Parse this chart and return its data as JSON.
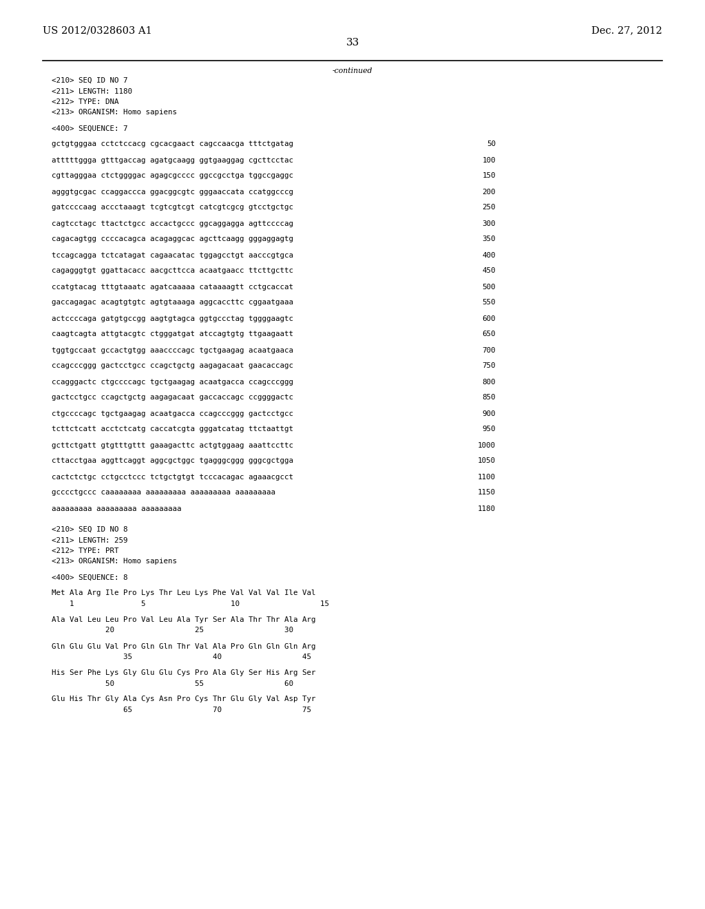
{
  "header_left": "US 2012/0328603 A1",
  "header_right": "Dec. 27, 2012",
  "page_number": "33",
  "continued_label": "-continued",
  "background_color": "#ffffff",
  "text_color": "#000000",
  "font_size_header": 10.5,
  "font_size_page": 11,
  "font_size_body": 7.8,
  "sequence_blocks": [
    {
      "type": "meta",
      "text": "<210> SEQ ID NO 7",
      "num": ""
    },
    {
      "type": "meta",
      "text": "<211> LENGTH: 1180",
      "num": ""
    },
    {
      "type": "meta",
      "text": "<212> TYPE: DNA",
      "num": ""
    },
    {
      "type": "meta",
      "text": "<213> ORGANISM: Homo sapiens",
      "num": ""
    },
    {
      "type": "blank",
      "text": "",
      "num": ""
    },
    {
      "type": "meta",
      "text": "<400> SEQUENCE: 7",
      "num": ""
    },
    {
      "type": "blank",
      "text": "",
      "num": ""
    },
    {
      "type": "seq",
      "text": "gctgtgggaa cctctccacg cgcacgaact cagccaacga tttctgatag",
      "num": "50"
    },
    {
      "type": "blank",
      "text": "",
      "num": ""
    },
    {
      "type": "seq",
      "text": "atttttggga gtttgaccag agatgcaagg ggtgaaggag cgcttcctac",
      "num": "100"
    },
    {
      "type": "blank",
      "text": "",
      "num": ""
    },
    {
      "type": "seq",
      "text": "cgttagggaa ctctggggac agagcgcccc ggccgcctga tggccgaggc",
      "num": "150"
    },
    {
      "type": "blank",
      "text": "",
      "num": ""
    },
    {
      "type": "seq",
      "text": "agggtgcgac ccaggaccca ggacggcgtc gggaaccata ccatggcccg",
      "num": "200"
    },
    {
      "type": "blank",
      "text": "",
      "num": ""
    },
    {
      "type": "seq",
      "text": "gatccccaag accctaaagt tcgtcgtcgt catcgtcgcg gtcctgctgc",
      "num": "250"
    },
    {
      "type": "blank",
      "text": "",
      "num": ""
    },
    {
      "type": "seq",
      "text": "cagtcctagc ttactctgcc accactgccc ggcaggagga agttccccag",
      "num": "300"
    },
    {
      "type": "blank",
      "text": "",
      "num": ""
    },
    {
      "type": "seq",
      "text": "cagacagtgg ccccacagca acagaggcac agcttcaagg gggaggagtg",
      "num": "350"
    },
    {
      "type": "blank",
      "text": "",
      "num": ""
    },
    {
      "type": "seq",
      "text": "tccagcagga tctcatagat cagaacatac tggagcctgt aacccgtgca",
      "num": "400"
    },
    {
      "type": "blank",
      "text": "",
      "num": ""
    },
    {
      "type": "seq",
      "text": "cagagggtgt ggattacacc aacgcttcca acaatgaacc ttcttgcttc",
      "num": "450"
    },
    {
      "type": "blank",
      "text": "",
      "num": ""
    },
    {
      "type": "seq",
      "text": "ccatgtacag tttgtaaatc agatcaaaaa cataaaagtt cctgcaccat",
      "num": "500"
    },
    {
      "type": "blank",
      "text": "",
      "num": ""
    },
    {
      "type": "seq",
      "text": "gaccagagac acagtgtgtc agtgtaaaga aggcaccttc cggaatgaaa",
      "num": "550"
    },
    {
      "type": "blank",
      "text": "",
      "num": ""
    },
    {
      "type": "seq",
      "text": "actccccaga gatgtgccgg aagtgtagca ggtgccctag tggggaagtc",
      "num": "600"
    },
    {
      "type": "blank",
      "text": "",
      "num": ""
    },
    {
      "type": "seq",
      "text": "caagtcagta attgtacgtc ctgggatgat atccagtgtg ttgaagaatt",
      "num": "650"
    },
    {
      "type": "blank",
      "text": "",
      "num": ""
    },
    {
      "type": "seq",
      "text": "tggtgccaat gccactgtgg aaaccccagc tgctgaagag acaatgaaca",
      "num": "700"
    },
    {
      "type": "blank",
      "text": "",
      "num": ""
    },
    {
      "type": "seq",
      "text": "ccagcccggg gactcctgcc ccagctgctg aagagacaat gaacaccagc",
      "num": "750"
    },
    {
      "type": "blank",
      "text": "",
      "num": ""
    },
    {
      "type": "seq",
      "text": "ccagggactc ctgccccagc tgctgaagag acaatgacca ccagcccggg",
      "num": "800"
    },
    {
      "type": "blank",
      "text": "",
      "num": ""
    },
    {
      "type": "seq",
      "text": "gactcctgcc ccagctgctg aagagacaat gaccaccagc ccggggactc",
      "num": "850"
    },
    {
      "type": "blank",
      "text": "",
      "num": ""
    },
    {
      "type": "seq",
      "text": "ctgccccagc tgctgaagag acaatgacca ccagcccggg gactcctgcc",
      "num": "900"
    },
    {
      "type": "blank",
      "text": "",
      "num": ""
    },
    {
      "type": "seq",
      "text": "tcttctcatt acctctcatg caccatcgta gggatcatag ttctaattgt",
      "num": "950"
    },
    {
      "type": "blank",
      "text": "",
      "num": ""
    },
    {
      "type": "seq",
      "text": "gcttctgatt gtgtttgttt gaaagacttc actgtggaag aaattccttc",
      "num": "1000"
    },
    {
      "type": "blank",
      "text": "",
      "num": ""
    },
    {
      "type": "seq",
      "text": "cttacctgaa aggttcaggt aggcgctggc tgagggcggg gggcgctgga",
      "num": "1050"
    },
    {
      "type": "blank",
      "text": "",
      "num": ""
    },
    {
      "type": "seq",
      "text": "cactctctgc cctgcctccc tctgctgtgt tcccacagac agaaacgcct",
      "num": "1100"
    },
    {
      "type": "blank",
      "text": "",
      "num": ""
    },
    {
      "type": "seq",
      "text": "gcccctgccc caaaaaaaa aaaaaaaaa aaaaaaaaa aaaaaaaaa",
      "num": "1150"
    },
    {
      "type": "blank",
      "text": "",
      "num": ""
    },
    {
      "type": "seq",
      "text": "aaaaaaaaa aaaaaaaaa aaaaaaaaa",
      "num": "1180"
    },
    {
      "type": "blank",
      "text": "",
      "num": ""
    },
    {
      "type": "blank",
      "text": "",
      "num": ""
    },
    {
      "type": "meta",
      "text": "<210> SEQ ID NO 8",
      "num": ""
    },
    {
      "type": "meta",
      "text": "<211> LENGTH: 259",
      "num": ""
    },
    {
      "type": "meta",
      "text": "<212> TYPE: PRT",
      "num": ""
    },
    {
      "type": "meta",
      "text": "<213> ORGANISM: Homo sapiens",
      "num": ""
    },
    {
      "type": "blank",
      "text": "",
      "num": ""
    },
    {
      "type": "meta",
      "text": "<400> SEQUENCE: 8",
      "num": ""
    },
    {
      "type": "blank",
      "text": "",
      "num": ""
    },
    {
      "type": "aa",
      "text": "Met Ala Arg Ile Pro Lys Thr Leu Lys Phe Val Val Val Ile Val",
      "num": ""
    },
    {
      "type": "aapos",
      "text": "    1               5                   10                  15",
      "num": ""
    },
    {
      "type": "blank",
      "text": "",
      "num": ""
    },
    {
      "type": "aa",
      "text": "Ala Val Leu Leu Pro Val Leu Ala Tyr Ser Ala Thr Thr Ala Arg",
      "num": ""
    },
    {
      "type": "aapos",
      "text": "            20                  25                  30",
      "num": ""
    },
    {
      "type": "blank",
      "text": "",
      "num": ""
    },
    {
      "type": "aa",
      "text": "Gln Glu Glu Val Pro Gln Gln Thr Val Ala Pro Gln Gln Gln Arg",
      "num": ""
    },
    {
      "type": "aapos",
      "text": "                35                  40                  45",
      "num": ""
    },
    {
      "type": "blank",
      "text": "",
      "num": ""
    },
    {
      "type": "aa",
      "text": "His Ser Phe Lys Gly Glu Glu Cys Pro Ala Gly Ser His Arg Ser",
      "num": ""
    },
    {
      "type": "aapos",
      "text": "            50                  55                  60",
      "num": ""
    },
    {
      "type": "blank",
      "text": "",
      "num": ""
    },
    {
      "type": "aa",
      "text": "Glu His Thr Gly Ala Cys Asn Pro Cys Thr Glu Gly Val Asp Tyr",
      "num": ""
    },
    {
      "type": "aapos",
      "text": "                65                  70                  75",
      "num": ""
    }
  ]
}
